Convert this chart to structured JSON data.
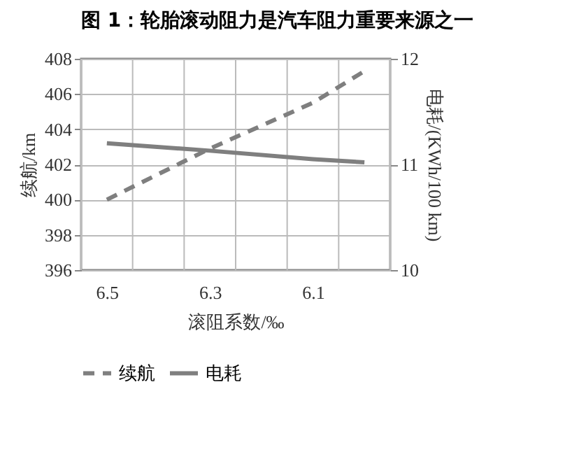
{
  "chart_data": {
    "type": "line",
    "title": "图 1：轮胎滚动阻力是汽车阻力重要来源之一",
    "xlabel": "滚阻系数/‰",
    "ylabel": "续航/km",
    "y2label": "电耗/(KWh/100 km)",
    "x": [
      6.5,
      6.3,
      6.1,
      6.0
    ],
    "series": [
      {
        "name": "续航",
        "color": "#7f7f7f",
        "values": [
          400,
          402.9,
          405.5,
          407.3
        ],
        "line_style": "dashed"
      },
      {
        "name": "电耗",
        "color": "#7f7f7f",
        "values": [
          11.2,
          11.13,
          11.05,
          11.02
        ],
        "line_style": "solid",
        "axis": "y2"
      }
    ],
    "xlim": [
      6.55,
      5.95
    ],
    "xticks": [
      {
        "value": 6.55,
        "label": null
      },
      6.5,
      {
        "value": 6.45,
        "label": null
      },
      {
        "value": 6.35,
        "label": null
      },
      6.3,
      {
        "value": 6.25,
        "label": null
      },
      {
        "value": 6.15,
        "label": null
      },
      6.1,
      {
        "value": 6.05,
        "label": null
      },
      {
        "value": 5.95,
        "label": null
      }
    ],
    "ylim": [
      396,
      408
    ],
    "yticks": [
      396,
      398,
      400,
      402,
      404,
      406,
      408
    ],
    "y2lim": [
      10,
      12
    ],
    "y2ticks": [
      10,
      11,
      12
    ],
    "grid": true,
    "legend": "bottom",
    "marker": "none"
  }
}
